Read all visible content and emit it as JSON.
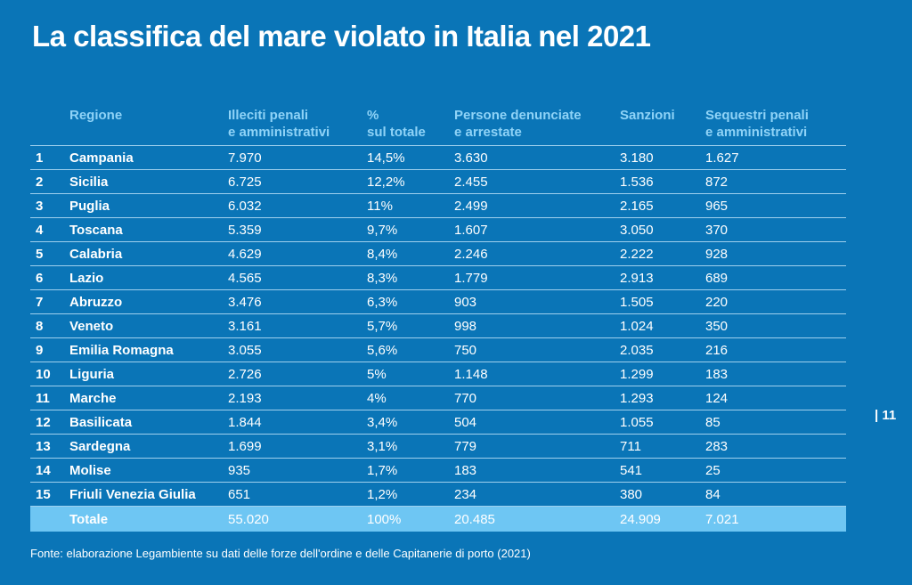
{
  "title": "La classifica del mare violato in Italia nel 2021",
  "headers": {
    "rank": "",
    "region": [
      "Regione"
    ],
    "illeciti": [
      "Illeciti penali",
      "e amministrativi"
    ],
    "percent": [
      "%",
      "sul totale"
    ],
    "persone": [
      "Persone denunciate",
      "e arrestate"
    ],
    "sanzioni": [
      "Sanzioni"
    ],
    "sequestri": [
      "Sequestri penali",
      "e amministrativi"
    ]
  },
  "rows": [
    [
      "1",
      "Campania",
      "7.970",
      "14,5%",
      "3.630",
      "3.180",
      "1.627"
    ],
    [
      "2",
      "Sicilia",
      "6.725",
      "12,2%",
      "2.455",
      "1.536",
      "872"
    ],
    [
      "3",
      "Puglia",
      "6.032",
      "11%",
      "2.499",
      "2.165",
      "965"
    ],
    [
      "4",
      "Toscana",
      "5.359",
      "9,7%",
      "1.607",
      "3.050",
      "370"
    ],
    [
      "5",
      "Calabria",
      "4.629",
      "8,4%",
      "2.246",
      "2.222",
      "928"
    ],
    [
      "6",
      "Lazio",
      "4.565",
      "8,3%",
      "1.779",
      "2.913",
      "689"
    ],
    [
      "7",
      "Abruzzo",
      "3.476",
      "6,3%",
      "903",
      "1.505",
      "220"
    ],
    [
      "8",
      "Veneto",
      "3.161",
      "5,7%",
      "998",
      "1.024",
      "350"
    ],
    [
      "9",
      "Emilia Romagna",
      "3.055",
      "5,6%",
      "750",
      "2.035",
      "216"
    ],
    [
      "10",
      "Liguria",
      "2.726",
      "5%",
      "1.148",
      "1.299",
      "183"
    ],
    [
      "11",
      "Marche",
      "2.193",
      "4%",
      "770",
      "1.293",
      "124"
    ],
    [
      "12",
      "Basilicata",
      "1.844",
      "3,4%",
      "504",
      "1.055",
      "85"
    ],
    [
      "13",
      "Sardegna",
      "1.699",
      "3,1%",
      "779",
      "711",
      "283"
    ],
    [
      "14",
      "Molise",
      "935",
      "1,7%",
      "183",
      "541",
      "25"
    ],
    [
      "15",
      "Friuli Venezia Giulia",
      "651",
      "1,2%",
      "234",
      "380",
      "84"
    ]
  ],
  "total": [
    "",
    "Totale",
    "55.020",
    "100%",
    "20.485",
    "24.909",
    "7.021"
  ],
  "source": "Fonte: elaborazione Legambiente su dati delle forze dell'ordine e delle Capitanerie di porto (2021)",
  "page_number": "| 11"
}
